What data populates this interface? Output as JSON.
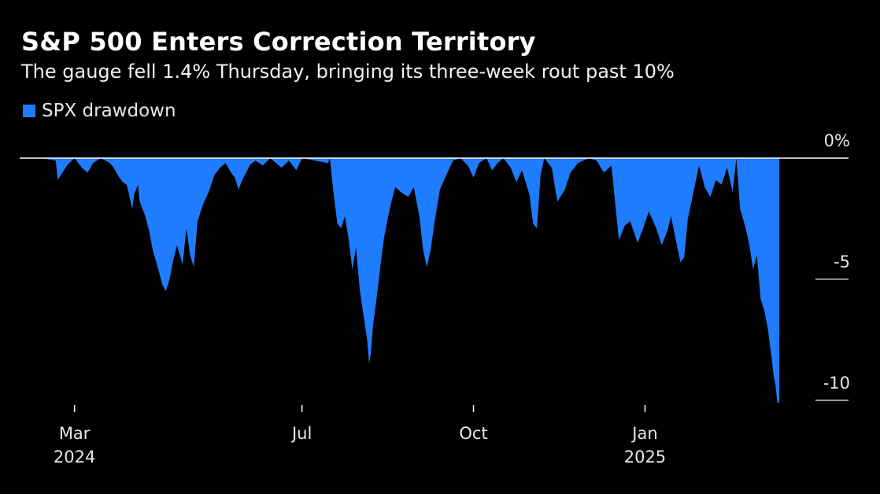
{
  "chart_data": {
    "type": "area",
    "title": "S&P 500 Enters Correction Territory",
    "subtitle": "The gauge fell 1.4% Thursday, bringing its three-week rout past 10%",
    "xlabel": "",
    "ylabel": "",
    "x_tick_labels": [
      {
        "label": "Mar",
        "year": "2024",
        "date": "2024-03-01"
      },
      {
        "label": "Jul",
        "year": "",
        "date": "2024-07-01"
      },
      {
        "label": "Oct",
        "year": "",
        "date": "2024-10-01"
      },
      {
        "label": "Jan",
        "year": "2025",
        "date": "2025-01-01"
      }
    ],
    "y_ticks": [
      {
        "label": "0%",
        "value": 0
      },
      {
        "label": "-5",
        "value": -5
      },
      {
        "label": "-10",
        "value": -10
      }
    ],
    "ylim": [
      -10.2,
      0
    ],
    "xlim": [
      "2024-02-12",
      "2025-03-14"
    ],
    "grid": false,
    "legend_position": "top-left",
    "series": [
      {
        "name": "SPX drawdown",
        "color": "#1f7cff",
        "points": [
          [
            "2024-02-12",
            0
          ],
          [
            "2024-02-20",
            -0.1
          ],
          [
            "2024-02-21",
            -0.9
          ],
          [
            "2024-02-26",
            -0.3
          ],
          [
            "2024-03-01",
            0
          ],
          [
            "2024-03-05",
            -0.4
          ],
          [
            "2024-03-08",
            -0.6
          ],
          [
            "2024-03-11",
            -0.2
          ],
          [
            "2024-03-15",
            0
          ],
          [
            "2024-03-20",
            -0.2
          ],
          [
            "2024-03-22",
            -0.4
          ],
          [
            "2024-03-25",
            -0.8
          ],
          [
            "2024-03-27",
            -1.0
          ],
          [
            "2024-03-29",
            -1.1
          ],
          [
            "2024-04-01",
            -2.1
          ],
          [
            "2024-04-02",
            -1.5
          ],
          [
            "2024-04-04",
            -1.1
          ],
          [
            "2024-04-05",
            -1.8
          ],
          [
            "2024-04-08",
            -2.4
          ],
          [
            "2024-04-10",
            -3.0
          ],
          [
            "2024-04-12",
            -3.8
          ],
          [
            "2024-04-15",
            -4.6
          ],
          [
            "2024-04-17",
            -5.2
          ],
          [
            "2024-04-19",
            -5.5
          ],
          [
            "2024-04-21",
            -5.0
          ],
          [
            "2024-04-23",
            -4.2
          ],
          [
            "2024-04-25",
            -3.6
          ],
          [
            "2024-04-28",
            -4.4
          ],
          [
            "2024-04-30",
            -2.9
          ],
          [
            "2024-05-02",
            -4.0
          ],
          [
            "2024-05-04",
            -4.5
          ],
          [
            "2024-05-06",
            -2.6
          ],
          [
            "2024-05-09",
            -1.9
          ],
          [
            "2024-05-12",
            -1.4
          ],
          [
            "2024-05-15",
            -0.7
          ],
          [
            "2024-05-18",
            -0.4
          ],
          [
            "2024-05-21",
            -0.2
          ],
          [
            "2024-05-24",
            -0.6
          ],
          [
            "2024-05-26",
            -0.8
          ],
          [
            "2024-05-28",
            -1.3
          ],
          [
            "2024-05-30",
            -0.9
          ],
          [
            "2024-06-03",
            -0.3
          ],
          [
            "2024-06-06",
            -0.1
          ],
          [
            "2024-06-10",
            -0.3
          ],
          [
            "2024-06-14",
            0
          ],
          [
            "2024-06-20",
            -0.4
          ],
          [
            "2024-06-24",
            -0.1
          ],
          [
            "2024-06-28",
            -0.5
          ],
          [
            "2024-07-01",
            0
          ],
          [
            "2024-07-15",
            -0.2
          ],
          [
            "2024-07-16",
            0
          ],
          [
            "2024-07-18",
            -1.5
          ],
          [
            "2024-07-20",
            -2.7
          ],
          [
            "2024-07-22",
            -2.9
          ],
          [
            "2024-07-24",
            -2.4
          ],
          [
            "2024-07-26",
            -3.3
          ],
          [
            "2024-07-28",
            -4.6
          ],
          [
            "2024-07-30",
            -3.7
          ],
          [
            "2024-08-01",
            -5.4
          ],
          [
            "2024-08-03",
            -6.5
          ],
          [
            "2024-08-05",
            -7.5
          ],
          [
            "2024-08-06",
            -8.5
          ],
          [
            "2024-08-07",
            -8.0
          ],
          [
            "2024-08-08",
            -7.0
          ],
          [
            "2024-08-10",
            -5.8
          ],
          [
            "2024-08-12",
            -4.5
          ],
          [
            "2024-08-14",
            -3.3
          ],
          [
            "2024-08-16",
            -2.5
          ],
          [
            "2024-08-18",
            -1.8
          ],
          [
            "2024-08-20",
            -1.2
          ],
          [
            "2024-08-23",
            -1.4
          ],
          [
            "2024-08-27",
            -1.6
          ],
          [
            "2024-08-30",
            -1.2
          ],
          [
            "2024-09-02",
            -2.4
          ],
          [
            "2024-09-04",
            -3.8
          ],
          [
            "2024-09-06",
            -4.5
          ],
          [
            "2024-09-08",
            -3.8
          ],
          [
            "2024-09-10",
            -2.7
          ],
          [
            "2024-09-13",
            -1.3
          ],
          [
            "2024-09-17",
            -0.6
          ],
          [
            "2024-09-20",
            -0.1
          ],
          [
            "2024-09-24",
            0
          ],
          [
            "2024-09-28",
            -0.3
          ],
          [
            "2024-10-01",
            -0.8
          ],
          [
            "2024-10-04",
            -0.2
          ],
          [
            "2024-10-08",
            0
          ],
          [
            "2024-10-11",
            -0.5
          ],
          [
            "2024-10-14",
            -0.2
          ],
          [
            "2024-10-17",
            0
          ],
          [
            "2024-10-21",
            -0.4
          ],
          [
            "2024-10-24",
            -1.0
          ],
          [
            "2024-10-27",
            -0.5
          ],
          [
            "2024-10-31",
            -1.5
          ],
          [
            "2024-11-02",
            -2.7
          ],
          [
            "2024-11-04",
            -2.9
          ],
          [
            "2024-11-06",
            -0.7
          ],
          [
            "2024-11-08",
            0
          ],
          [
            "2024-11-12",
            -0.4
          ],
          [
            "2024-11-15",
            -1.8
          ],
          [
            "2024-11-19",
            -1.3
          ],
          [
            "2024-11-22",
            -0.6
          ],
          [
            "2024-11-26",
            -0.2
          ],
          [
            "2024-12-02",
            0
          ],
          [
            "2024-12-06",
            -0.1
          ],
          [
            "2024-12-10",
            -0.6
          ],
          [
            "2024-12-14",
            -0.3
          ],
          [
            "2024-12-18",
            -3.4
          ],
          [
            "2024-12-21",
            -2.8
          ],
          [
            "2024-12-24",
            -2.6
          ],
          [
            "2024-12-28",
            -3.5
          ],
          [
            "2024-12-31",
            -2.9
          ],
          [
            "2025-01-03",
            -2.2
          ],
          [
            "2025-01-07",
            -2.9
          ],
          [
            "2025-01-10",
            -3.6
          ],
          [
            "2025-01-13",
            -3.0
          ],
          [
            "2025-01-15",
            -2.4
          ],
          [
            "2025-01-17",
            -3.2
          ],
          [
            "2025-01-20",
            -4.3
          ],
          [
            "2025-01-22",
            -4.1
          ],
          [
            "2025-01-24",
            -2.5
          ],
          [
            "2025-01-27",
            -1.4
          ],
          [
            "2025-01-30",
            -0.3
          ],
          [
            "2025-02-02",
            -1.2
          ],
          [
            "2025-02-05",
            -1.6
          ],
          [
            "2025-02-08",
            -0.9
          ],
          [
            "2025-02-11",
            -1.1
          ],
          [
            "2025-02-14",
            -0.4
          ],
          [
            "2025-02-17",
            -1.4
          ],
          [
            "2025-02-19",
            0
          ],
          [
            "2025-02-21",
            -2.1
          ],
          [
            "2025-02-24",
            -2.9
          ],
          [
            "2025-02-26",
            -3.6
          ],
          [
            "2025-02-28",
            -4.6
          ],
          [
            "2025-03-02",
            -4.0
          ],
          [
            "2025-03-04",
            -5.8
          ],
          [
            "2025-03-06",
            -6.3
          ],
          [
            "2025-03-08",
            -7.1
          ],
          [
            "2025-03-10",
            -8.3
          ],
          [
            "2025-03-11",
            -9.0
          ],
          [
            "2025-03-12",
            -9.4
          ],
          [
            "2025-03-13",
            -10.1
          ],
          [
            "2025-03-14",
            -10.1
          ]
        ]
      }
    ]
  }
}
